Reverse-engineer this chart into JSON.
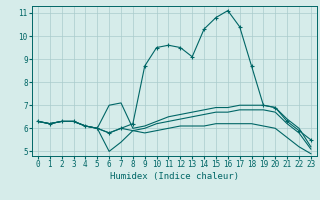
{
  "title": "",
  "xlabel": "Humidex (Indice chaleur)",
  "ylabel": "",
  "bg_color": "#d6ecea",
  "grid_color": "#aacccc",
  "line_color": "#006666",
  "xlim": [
    -0.5,
    23.5
  ],
  "ylim": [
    4.8,
    11.3
  ],
  "xticks": [
    0,
    1,
    2,
    3,
    4,
    5,
    6,
    7,
    8,
    9,
    10,
    11,
    12,
    13,
    14,
    15,
    16,
    17,
    18,
    19,
    20,
    21,
    22,
    23
  ],
  "yticks": [
    5,
    6,
    7,
    8,
    9,
    10,
    11
  ],
  "x": [
    0,
    1,
    2,
    3,
    4,
    5,
    6,
    7,
    8,
    9,
    10,
    11,
    12,
    13,
    14,
    15,
    16,
    17,
    18,
    19,
    20,
    21,
    22,
    23
  ],
  "line1": [
    6.3,
    6.2,
    6.3,
    6.3,
    6.1,
    6.0,
    5.8,
    6.0,
    6.2,
    8.7,
    9.5,
    9.6,
    9.5,
    9.1,
    10.3,
    10.8,
    11.1,
    10.4,
    8.7,
    7.0,
    6.9,
    6.3,
    5.9,
    5.5
  ],
  "line2": [
    6.3,
    6.2,
    6.3,
    6.3,
    6.1,
    6.0,
    7.0,
    7.1,
    6.0,
    6.1,
    6.3,
    6.5,
    6.6,
    6.7,
    6.8,
    6.9,
    6.9,
    7.0,
    7.0,
    7.0,
    6.9,
    6.4,
    6.0,
    5.2
  ],
  "line3": [
    6.3,
    6.2,
    6.3,
    6.3,
    6.1,
    6.0,
    5.8,
    6.0,
    5.9,
    6.0,
    6.2,
    6.3,
    6.4,
    6.5,
    6.6,
    6.7,
    6.7,
    6.8,
    6.8,
    6.8,
    6.7,
    6.2,
    5.8,
    5.1
  ],
  "line4": [
    6.3,
    6.2,
    6.3,
    6.3,
    6.1,
    6.0,
    5.0,
    5.4,
    5.9,
    5.8,
    5.9,
    6.0,
    6.1,
    6.1,
    6.1,
    6.2,
    6.2,
    6.2,
    6.2,
    6.1,
    6.0,
    5.6,
    5.2,
    4.9
  ]
}
